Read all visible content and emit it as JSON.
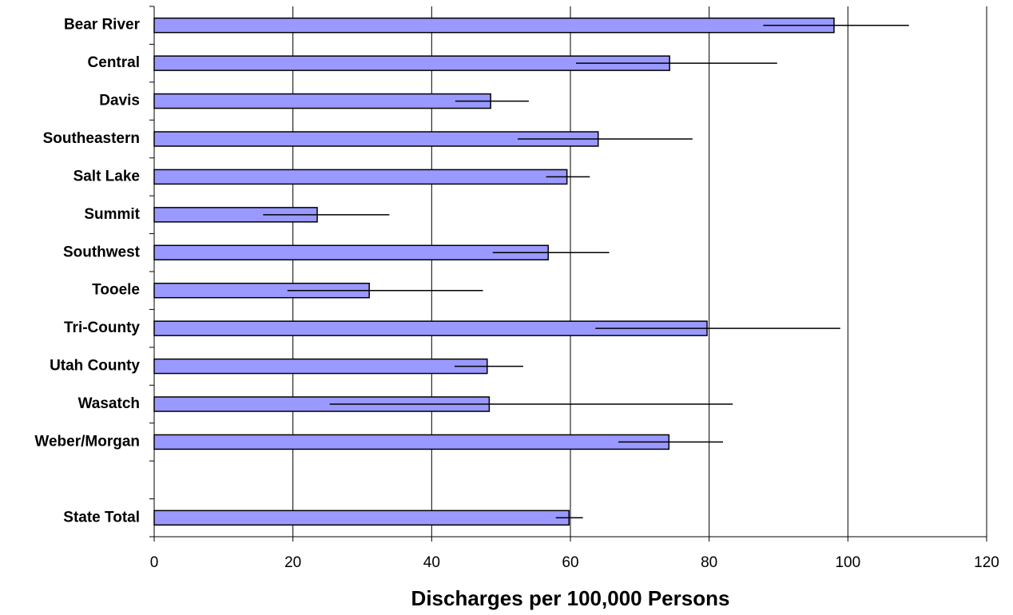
{
  "chart_data": {
    "type": "hbar",
    "xlabel": "Discharges per 100,000 Persons",
    "categories": [
      "Bear River",
      "Central",
      "Davis",
      "Southeastern",
      "Salt Lake",
      "Summit",
      "Southwest",
      "Tooele",
      "Tri-County",
      "Utah County",
      "Wasatch",
      "Weber/Morgan",
      null,
      "State Total"
    ],
    "values": [
      98,
      74.3,
      48.5,
      64,
      59.5,
      23.5,
      56.8,
      31,
      79.7,
      48,
      48.3,
      74.2,
      null,
      59.8
    ],
    "ci_low": [
      87.8,
      60.8,
      43.4,
      52.4,
      56.5,
      15.7,
      48.8,
      19.2,
      63.6,
      43.3,
      25.3,
      66.9,
      null,
      57.9
    ],
    "ci_high": [
      108.8,
      89.8,
      54,
      77.6,
      62.8,
      33.9,
      65.6,
      47.4,
      98.9,
      53.2,
      83.4,
      82,
      null,
      61.8
    ],
    "color": "#9999ff",
    "xlim": [
      0,
      120
    ],
    "xticks": [
      0,
      20,
      40,
      60,
      80,
      100,
      120
    ],
    "grid": true
  }
}
